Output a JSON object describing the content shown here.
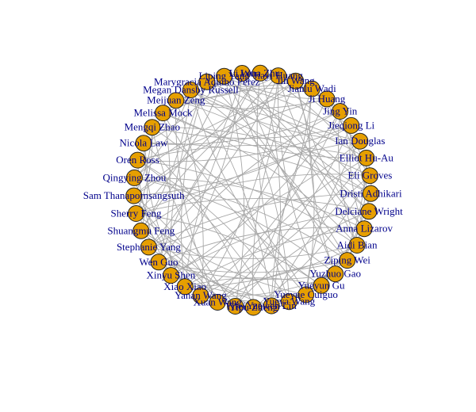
{
  "colors": {
    "background": "#ffffff",
    "node_fill": "#e69f00",
    "node_stroke": "#222222",
    "edge": "#a8a8a8",
    "label": "#00008b"
  },
  "nodes": [
    "Aidi Bian",
    "Ziping Wei",
    "Yuzhuo Gao",
    "Yueyun Gu",
    "Yueyue Cuiguo",
    "Yueya Wang",
    "Yuewen Lin",
    "Yipu Zheng",
    "Yifei",
    "Xuan Wang",
    "Yanan Wang",
    "Xiao Xiao",
    "Xinyu Shen",
    "Wen Guo",
    "Stephanie Yang",
    "Shuangmu Feng",
    "Sherry Feng",
    "Sam Thanapornsangsuth",
    "Qingying Zhou",
    "Oren Ross",
    "Nicola Law",
    "Mengqi Zhao",
    "Melissa Mock",
    "Meijuan Zeng",
    "Megan Dansby Russell",
    "Marygracia Aquino Perez",
    "Liping Yang",
    "Li Wu",
    "Lena Zhu",
    "Jiayi Huang",
    "Jin Wang",
    "Jianlu Wadi",
    "Ji Huang",
    "Jing Yin",
    "Jieqiong Li",
    "Ian Douglas",
    "Elliot Hu-Au",
    "Eli Groves",
    "Dristi Adhikari",
    "Delciane Wright",
    "Anna Lizarov"
  ],
  "edges": [
    [
      0,
      14
    ],
    [
      0,
      22
    ],
    [
      0,
      33
    ],
    [
      1,
      18
    ],
    [
      1,
      27
    ],
    [
      1,
      36
    ],
    [
      2,
      10
    ],
    [
      2,
      25
    ],
    [
      2,
      31
    ],
    [
      3,
      16
    ],
    [
      3,
      29
    ],
    [
      3,
      38
    ],
    [
      4,
      12
    ],
    [
      4,
      21
    ],
    [
      4,
      35
    ],
    [
      5,
      19
    ],
    [
      5,
      28
    ],
    [
      5,
      40
    ],
    [
      6,
      15
    ],
    [
      6,
      24
    ],
    [
      6,
      32
    ],
    [
      7,
      20
    ],
    [
      7,
      30
    ],
    [
      7,
      37
    ],
    [
      8,
      13
    ],
    [
      8,
      26
    ],
    [
      8,
      39
    ],
    [
      9,
      17
    ],
    [
      9,
      23
    ],
    [
      9,
      34
    ],
    [
      10,
      18
    ],
    [
      10,
      36
    ],
    [
      11,
      25
    ],
    [
      11,
      31
    ],
    [
      11,
      40
    ],
    [
      12,
      27
    ],
    [
      12,
      39
    ],
    [
      13,
      22
    ],
    [
      13,
      33
    ],
    [
      14,
      29
    ],
    [
      14,
      38
    ],
    [
      15,
      20
    ],
    [
      15,
      35
    ],
    [
      16,
      26
    ],
    [
      16,
      37
    ],
    [
      17,
      28
    ],
    [
      17,
      32
    ],
    [
      18,
      24
    ],
    [
      18,
      40
    ],
    [
      19,
      30
    ],
    [
      19,
      36
    ],
    [
      20,
      33
    ],
    [
      21,
      27
    ],
    [
      21,
      34
    ],
    [
      22,
      31
    ],
    [
      23,
      29
    ],
    [
      23,
      39
    ],
    [
      24,
      35
    ],
    [
      25,
      38
    ],
    [
      26,
      32
    ],
    [
      28,
      37
    ],
    [
      30,
      40
    ],
    [
      0,
      5
    ],
    [
      1,
      9
    ],
    [
      2,
      7
    ],
    [
      3,
      11
    ],
    [
      4,
      16
    ],
    [
      6,
      19
    ],
    [
      8,
      21
    ],
    [
      10,
      23
    ],
    [
      12,
      25
    ],
    [
      14,
      27
    ],
    [
      15,
      30
    ],
    [
      17,
      34
    ],
    [
      20,
      38
    ],
    [
      22,
      36
    ],
    [
      24,
      39
    ],
    [
      26,
      35
    ],
    [
      28,
      33
    ],
    [
      29,
      40
    ],
    [
      31,
      37
    ],
    [
      0,
      26
    ],
    [
      1,
      13
    ],
    [
      2,
      18
    ],
    [
      3,
      22
    ],
    [
      4,
      30
    ],
    [
      5,
      14
    ],
    [
      6,
      28
    ],
    [
      7,
      17
    ],
    [
      8,
      31
    ],
    [
      9,
      36
    ],
    [
      10,
      29
    ],
    [
      11,
      20
    ],
    [
      12,
      33
    ],
    [
      13,
      40
    ],
    [
      15,
      24
    ],
    [
      16,
      39
    ],
    [
      19,
      34
    ],
    [
      21,
      37
    ],
    [
      23,
      32
    ],
    [
      25,
      35
    ],
    [
      27,
      38
    ],
    [
      0,
      11
    ],
    [
      2,
      36
    ],
    [
      4,
      24
    ],
    [
      6,
      9
    ],
    [
      8,
      16
    ],
    [
      10,
      33
    ],
    [
      12,
      19
    ],
    [
      14,
      35
    ],
    [
      18,
      31
    ],
    [
      20,
      26
    ],
    [
      22,
      28
    ],
    [
      30,
      34
    ],
    [
      32,
      39
    ],
    [
      1,
      24
    ],
    [
      3,
      7
    ],
    [
      5,
      26
    ],
    [
      13,
      29
    ],
    [
      17,
      21
    ],
    [
      27,
      32
    ],
    [
      34,
      40
    ],
    [
      36,
      38
    ],
    [
      0,
      19
    ],
    [
      2,
      13
    ],
    [
      4,
      39
    ],
    [
      6,
      37
    ],
    [
      9,
      15
    ],
    [
      11,
      28
    ],
    [
      16,
      21
    ],
    [
      23,
      36
    ],
    [
      25,
      30
    ],
    [
      31,
      33
    ]
  ]
}
